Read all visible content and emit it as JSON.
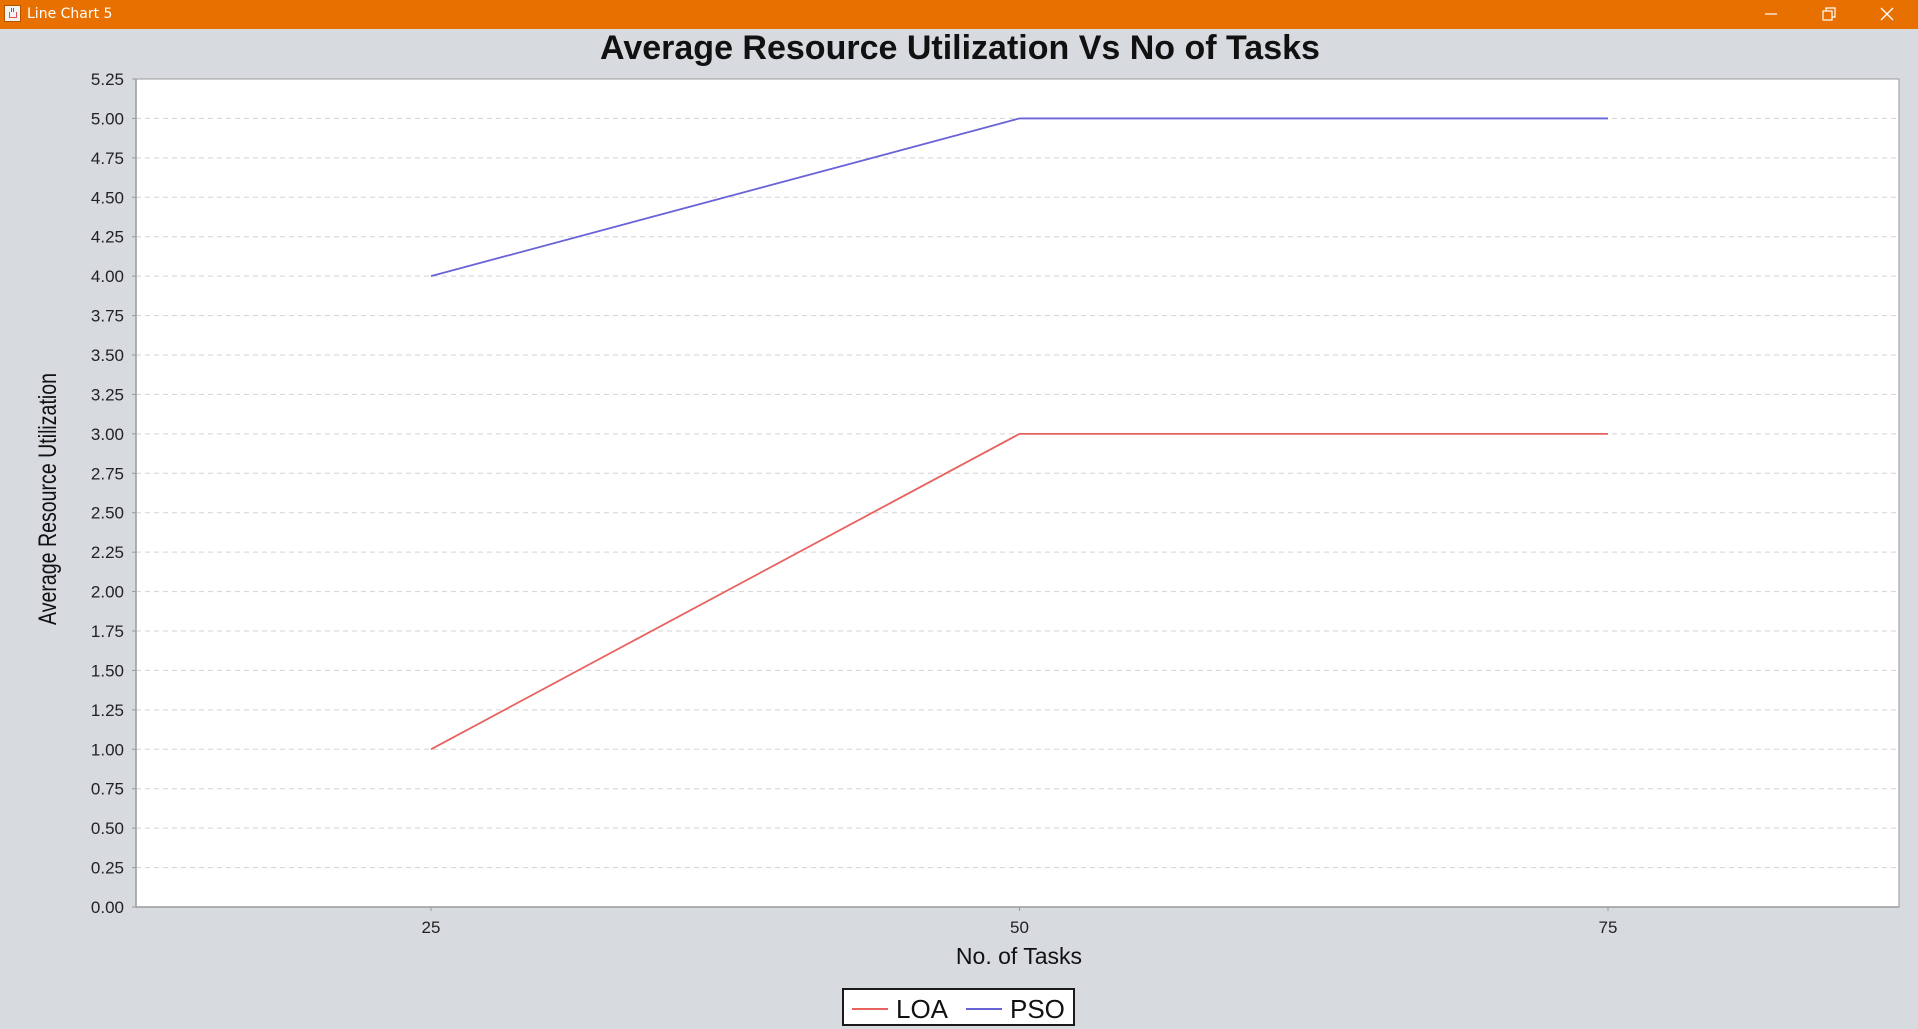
{
  "window": {
    "title": "Line Chart 5",
    "icon": "java-cup-icon",
    "controls": [
      "minimize-icon",
      "restore-icon",
      "close-icon"
    ],
    "titlebar_color": "#e87000"
  },
  "chart_data": {
    "type": "line",
    "title": "Average Resource Utilization Vs No of Tasks",
    "xlabel": "No. of Tasks",
    "ylabel": "Average Resource Utilization",
    "categories": [
      "25",
      "50",
      "75"
    ],
    "series": [
      {
        "name": "LOA",
        "values": [
          1.0,
          3.0,
          3.0
        ],
        "color": "#e8625f"
      },
      {
        "name": "PSO",
        "values": [
          4.0,
          5.0,
          5.0
        ],
        "color": "#6a63d8"
      }
    ],
    "ylim": [
      0,
      5.25
    ],
    "yticks": [
      "0.00",
      "0.25",
      "0.50",
      "0.75",
      "1.00",
      "1.25",
      "1.50",
      "1.75",
      "2.00",
      "2.25",
      "2.50",
      "2.75",
      "3.00",
      "3.25",
      "3.50",
      "3.75",
      "4.00",
      "4.25",
      "4.50",
      "4.75",
      "5.00",
      "5.25"
    ],
    "grid": true,
    "legend": "bottom-center"
  }
}
